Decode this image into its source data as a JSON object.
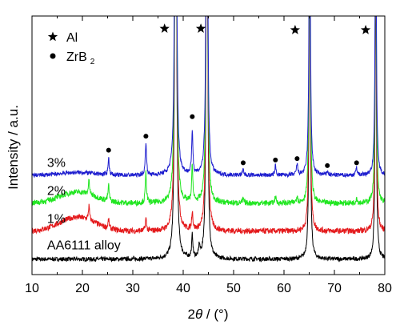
{
  "chart_data": {
    "type": "line",
    "title": "",
    "xlabel_prefix": "2",
    "xlabel_symbol": "θ",
    "xlabel_suffix": " / (°)",
    "ylabel": "Intensity / a.u.",
    "xlim": [
      10,
      80
    ],
    "x_ticks": [
      10,
      20,
      30,
      40,
      50,
      60,
      70,
      80
    ],
    "y_ticks_shown": false,
    "grid": false,
    "legend": {
      "position": "top-left",
      "entries": [
        {
          "marker": "star",
          "label": "Al",
          "sub": ""
        },
        {
          "marker": "circle",
          "label": "ZrB",
          "sub": "2"
        }
      ]
    },
    "series": [
      {
        "name": "AA6111 alloy",
        "color": "#000000",
        "baseline": 0,
        "hump": 0.0,
        "noise": 0.15,
        "peaks": [
          [
            38.5,
            30
          ],
          [
            41.8,
            0.8
          ],
          [
            43.2,
            0.4
          ],
          [
            44.7,
            22
          ],
          [
            65.1,
            13
          ],
          [
            78.2,
            11
          ]
        ]
      },
      {
        "name": "1%",
        "color": "#e41a1c",
        "baseline": 1,
        "hump": 0.5,
        "noise": 0.2,
        "peaks": [
          [
            21.3,
            0.5
          ],
          [
            25.2,
            0.3
          ],
          [
            32.6,
            0.45
          ],
          [
            38.5,
            30
          ],
          [
            41.8,
            0.65
          ],
          [
            44.7,
            22
          ],
          [
            65.1,
            13
          ],
          [
            78.2,
            11
          ]
        ]
      },
      {
        "name": "2%",
        "color": "#22e622",
        "baseline": 2,
        "hump": 0.4,
        "noise": 0.2,
        "peaks": [
          [
            21.3,
            0.5
          ],
          [
            25.2,
            0.55
          ],
          [
            32.6,
            1.1
          ],
          [
            38.5,
            30
          ],
          [
            41.8,
            1.3
          ],
          [
            44.7,
            22
          ],
          [
            51.9,
            0.15
          ],
          [
            58.3,
            0.25
          ],
          [
            62.6,
            0.25
          ],
          [
            65.1,
            13
          ],
          [
            74.4,
            0.2
          ],
          [
            78.2,
            11
          ]
        ]
      },
      {
        "name": "3%",
        "color": "#1f1fcf",
        "baseline": 3,
        "hump": 0.1,
        "noise": 0.15,
        "peaks": [
          [
            25.2,
            0.6
          ],
          [
            32.6,
            1.2
          ],
          [
            38.5,
            30
          ],
          [
            41.8,
            1.55
          ],
          [
            44.7,
            22
          ],
          [
            51.9,
            0.2
          ],
          [
            58.3,
            0.35
          ],
          [
            62.6,
            0.4
          ],
          [
            65.1,
            13
          ],
          [
            68.6,
            0.15
          ],
          [
            74.4,
            0.3
          ],
          [
            78.2,
            11
          ]
        ]
      }
    ],
    "annotations": {
      "zrb2_dots": [
        [
          25.2,
          3.9
        ],
        [
          32.6,
          4.4
        ],
        [
          41.8,
          5.1
        ],
        [
          51.9,
          3.45
        ],
        [
          58.3,
          3.55
        ],
        [
          62.6,
          3.6
        ],
        [
          68.6,
          3.35
        ],
        [
          74.4,
          3.45
        ]
      ],
      "al_stars": [
        [
          36.3,
          8.25
        ],
        [
          43.5,
          8.25
        ],
        [
          62.2,
          8.2
        ],
        [
          76.2,
          8.2
        ]
      ]
    },
    "series_label_positions": [
      [
        13,
        0.35
      ],
      [
        13,
        1.3
      ],
      [
        13,
        2.3
      ],
      [
        13,
        3.3
      ]
    ]
  }
}
